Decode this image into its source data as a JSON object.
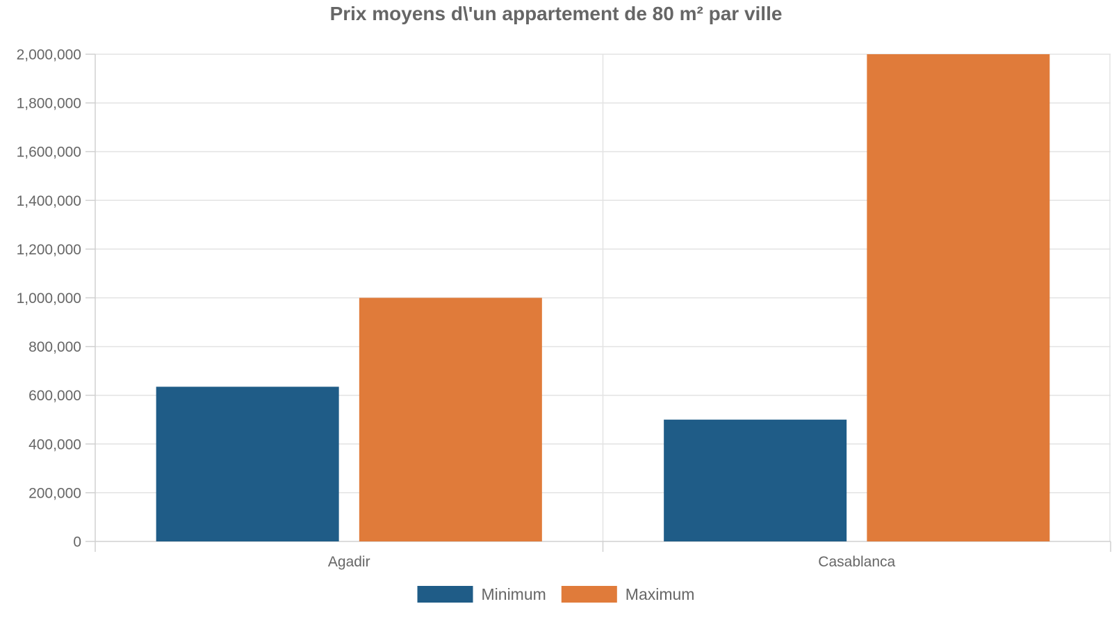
{
  "chart_data": {
    "type": "bar",
    "title": "Prix moyens d\\'un appartement de 80 m² par ville",
    "categories": [
      "Agadir",
      "Casablanca"
    ],
    "series": [
      {
        "name": "Minimum",
        "values": [
          635000,
          500000
        ],
        "color": "#1f5c87"
      },
      {
        "name": "Maximum",
        "values": [
          1000000,
          2000000
        ],
        "color": "#e07b3a"
      }
    ],
    "ylim": [
      0,
      2000000
    ],
    "yticks": [
      0,
      200000,
      400000,
      600000,
      800000,
      1000000,
      1200000,
      1400000,
      1600000,
      1800000,
      2000000
    ],
    "ytick_labels": [
      "0",
      "200,000",
      "400,000",
      "600,000",
      "800,000",
      "1,000,000",
      "1,200,000",
      "1,400,000",
      "1,600,000",
      "1,800,000",
      "2,000,000"
    ],
    "grid": true,
    "legend_position": "bottom-center",
    "xlabel": "",
    "ylabel": ""
  }
}
